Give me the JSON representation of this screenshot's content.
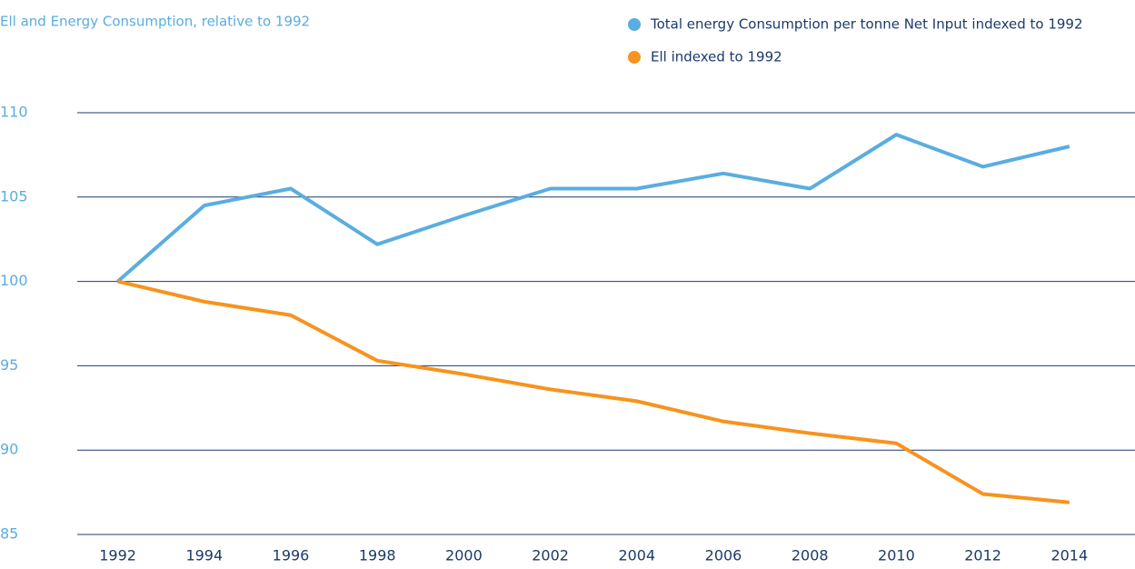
{
  "chart_data": {
    "type": "line",
    "title": "Ell and Energy Consumption, relative to 1992",
    "categories": [
      "1992",
      "1994",
      "1996",
      "1998",
      "2000",
      "2002",
      "2004",
      "2006",
      "2008",
      "2010",
      "2012",
      "2014"
    ],
    "series": [
      {
        "name": "Total energy Consumption per tonne Net Input indexed to 1992",
        "color": "#5aade0",
        "values": [
          100,
          104.5,
          105.5,
          102.2,
          103.9,
          105.5,
          105.5,
          106.4,
          105.5,
          108.7,
          106.8,
          108.0
        ]
      },
      {
        "name": "Ell indexed to 1992",
        "color": "#f7931e",
        "values": [
          100,
          98.8,
          98.0,
          95.3,
          94.5,
          93.6,
          92.9,
          91.7,
          91.0,
          90.4,
          87.4,
          86.9
        ]
      }
    ],
    "ylim": [
      85,
      110
    ],
    "yticks": [
      85,
      90,
      95,
      100,
      105,
      110
    ],
    "grid": true
  }
}
